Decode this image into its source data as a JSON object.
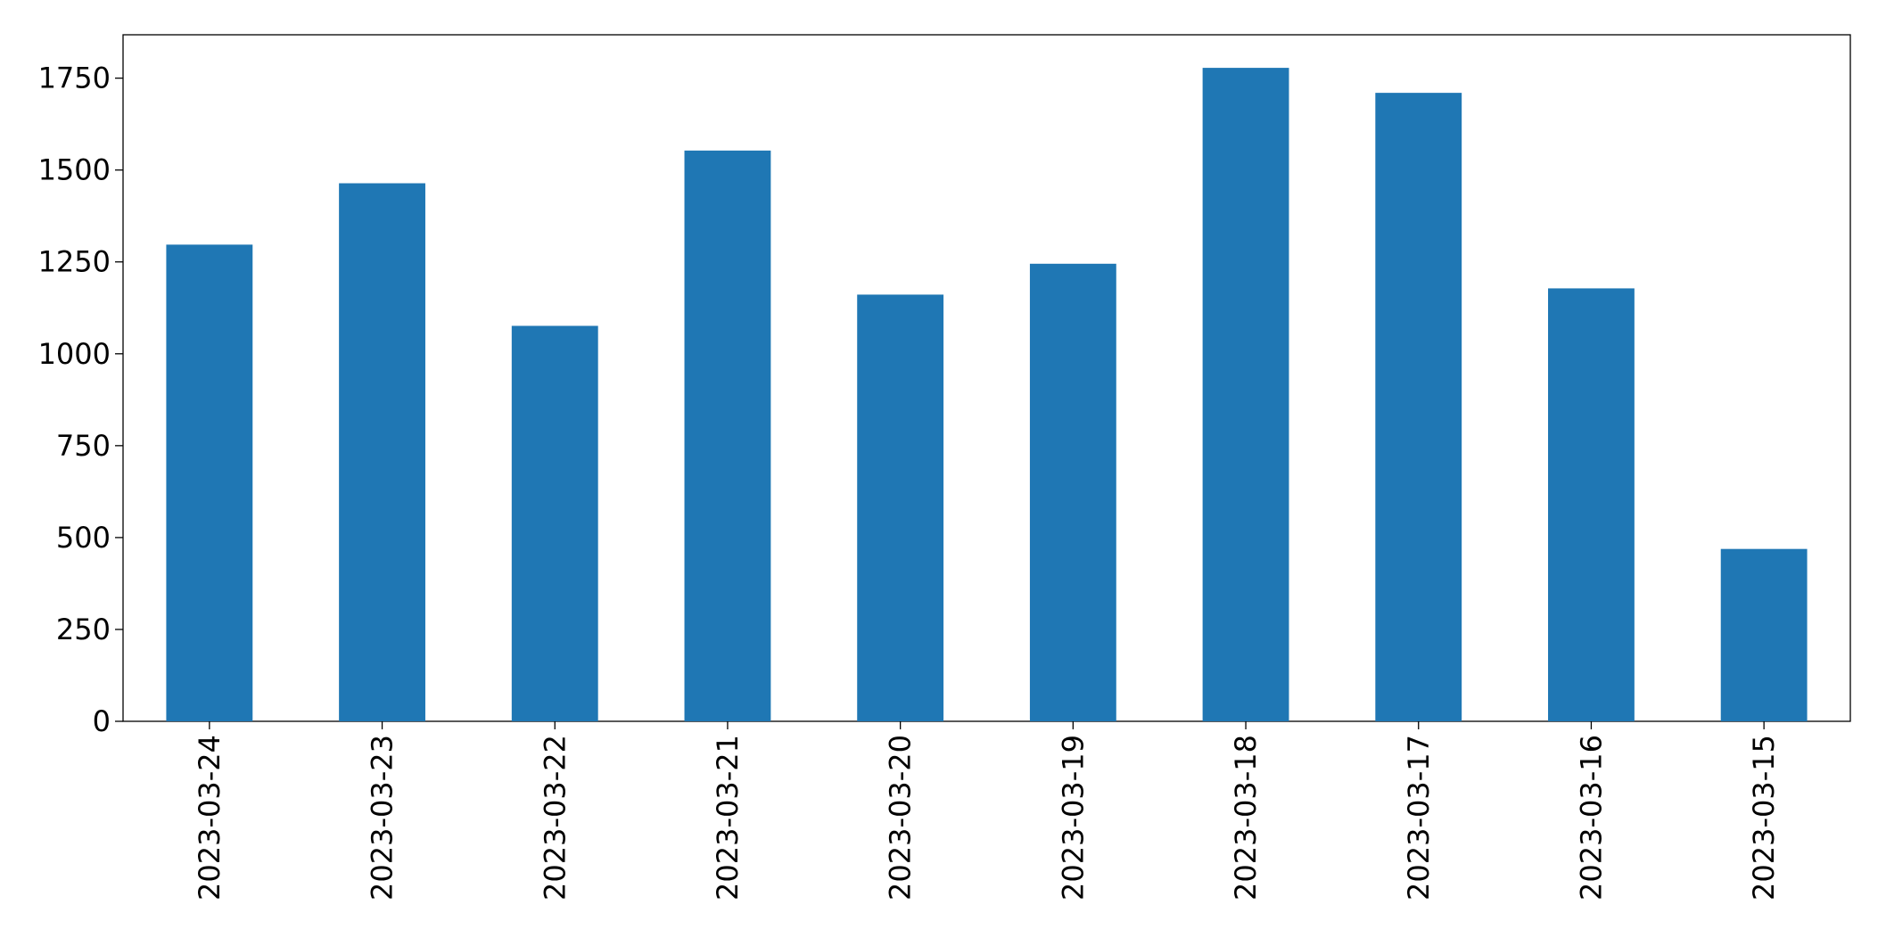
{
  "chart_data": {
    "type": "bar",
    "categories": [
      "2023-03-24",
      "2023-03-23",
      "2023-03-22",
      "2023-03-21",
      "2023-03-20",
      "2023-03-19",
      "2023-03-18",
      "2023-03-17",
      "2023-03-16",
      "2023-03-15"
    ],
    "values": [
      1297,
      1464,
      1076,
      1553,
      1161,
      1245,
      1778,
      1710,
      1178,
      469
    ],
    "color": "#1f77b4",
    "ylim": [
      0,
      1868
    ],
    "yticks": [
      0,
      250,
      500,
      750,
      1000,
      1250,
      1500,
      1750
    ],
    "grid": false
  }
}
